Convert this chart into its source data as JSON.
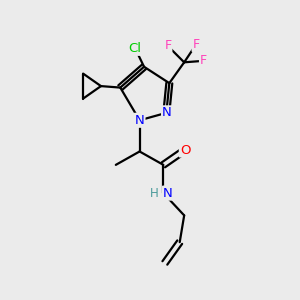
{
  "background_color": "#ebebeb",
  "bond_color": "#000000",
  "atom_colors": {
    "N": "#0000ff",
    "O": "#ff0000",
    "Cl": "#00cc00",
    "F": "#ff44bb",
    "H": "#4a9a9a",
    "C": "#000000"
  },
  "figsize": [
    3.0,
    3.0
  ],
  "dpi": 100
}
